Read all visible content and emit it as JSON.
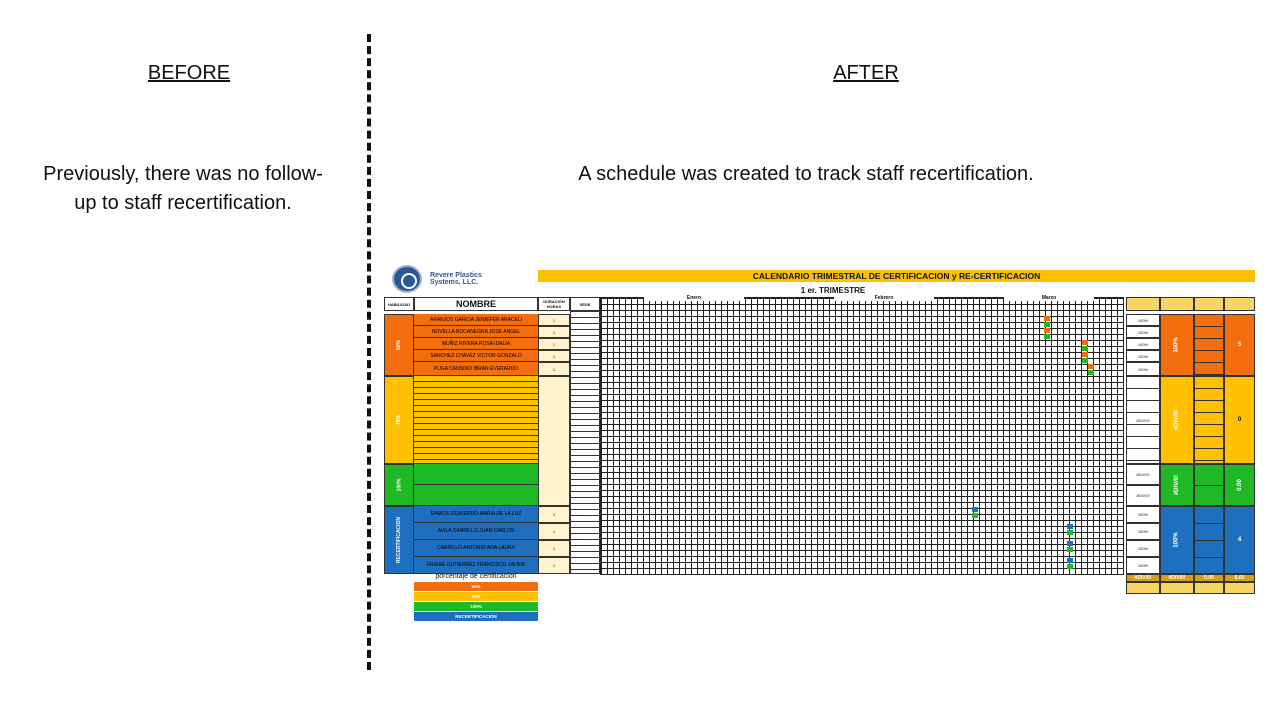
{
  "before": {
    "heading": "BEFORE",
    "text": "Previously, there was no follow-up to staff recertification."
  },
  "after": {
    "heading": "AFTER",
    "text": "A schedule was created to track staff recertification."
  },
  "sheet": {
    "company": "Revere Plastics Systems, LLC.",
    "title": "CALENDARIO TRIMESTRAL DE CERTIFICACION y RE-CERTIFICACION",
    "subtitle": "1 er. TRIMESTRE",
    "headers": {
      "habilidad": "HABILIDAD",
      "nombre": "NOMBRE",
      "duracion": "DURACIÓN HORAS",
      "sede": "SEDE"
    },
    "months": [
      "Enero",
      "Febrero",
      "Marzo"
    ],
    "groups": [
      {
        "label": "50%",
        "color": "#f36c0e"
      },
      {
        "label": "75%",
        "color": "#fec000"
      },
      {
        "label": "100%",
        "color": "#1fb925"
      },
      {
        "label": "RECERTIFICACION",
        "color": "#1f6fbf"
      }
    ],
    "people_50": [
      "ARANJOS GARCIA JENNIFER ARACELI",
      "NOVELLA BOCANEGRA JOSE ANGEL",
      "MUÑIZ RIVERA ROSA IDALIA",
      "SANCHEZ CHAVEZ VICTOR GONZALO",
      "PUGA CANSINO IBRAN EVERARDO"
    ],
    "people_recert": [
      "RAMOS IZQUIERDO MARIA DE LA LUZ",
      "AVILA CARRILLO JUAN CARLOS",
      "CARRILLO ANTONIO ANA LAURA",
      "FRAIRE GUTIERREZ FRANCISCO JAVIER"
    ],
    "duration_value": "1",
    "pct_100": "100%",
    "div_error": "#DIV/0!",
    "summary": {
      "g50_pct": "100%",
      "g50_count": "5",
      "g75_pct": "#DIV/0!",
      "g75_count": "0",
      "g100_pct": "#DIV/0!",
      "g100_count": "0.00",
      "recert_pct": "100%",
      "recert_count": "4"
    },
    "footer_values": [
      "#DIV/0!",
      "#DIV/0!",
      "0.00",
      "0.00"
    ],
    "legend": {
      "title": "porcentaje de certificacion",
      "items": [
        "50%",
        "75%",
        "100%",
        "RECERTIFICACION"
      ]
    }
  }
}
